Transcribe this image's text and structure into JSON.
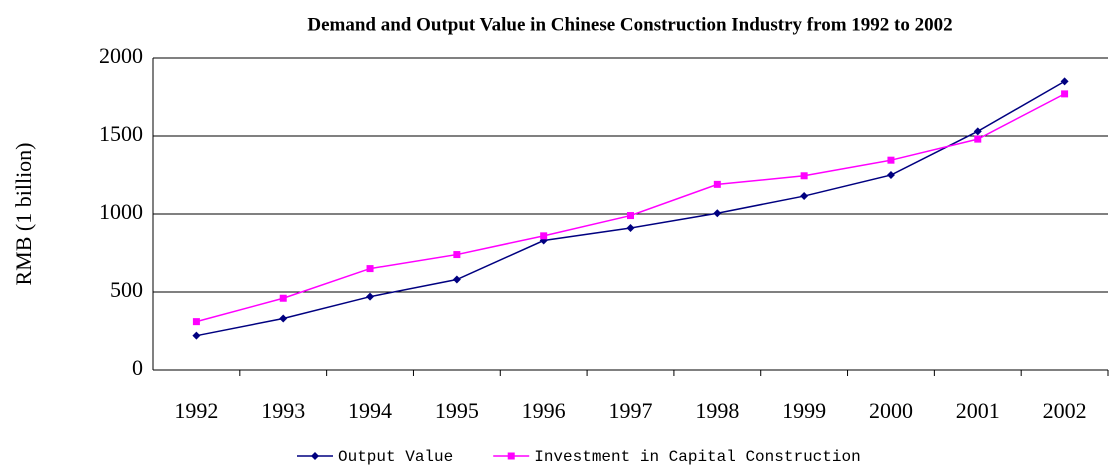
{
  "chart_data": {
    "type": "line",
    "title": "Demand and Output Value in Chinese Construction Industry from 1992 to 2002",
    "ylabel": "RMB (1 billion)",
    "categories": [
      "1992",
      "1993",
      "1994",
      "1995",
      "1996",
      "1997",
      "1998",
      "1999",
      "2000",
      "2001",
      "2002"
    ],
    "series": [
      {
        "name": "Output Value",
        "color": "#000080",
        "marker": "diamond",
        "values": [
          220,
          330,
          470,
          580,
          830,
          910,
          1005,
          1115,
          1250,
          1530,
          1850
        ]
      },
      {
        "name": "Investment in Capital Construction",
        "color": "#ff00ff",
        "marker": "square",
        "values": [
          310,
          460,
          650,
          740,
          860,
          990,
          1190,
          1245,
          1345,
          1480,
          1770
        ]
      }
    ],
    "ylim": [
      0,
      2000
    ],
    "yticks": [
      0,
      500,
      1000,
      1500,
      2000
    ],
    "grid": true,
    "legend": "bottom"
  }
}
